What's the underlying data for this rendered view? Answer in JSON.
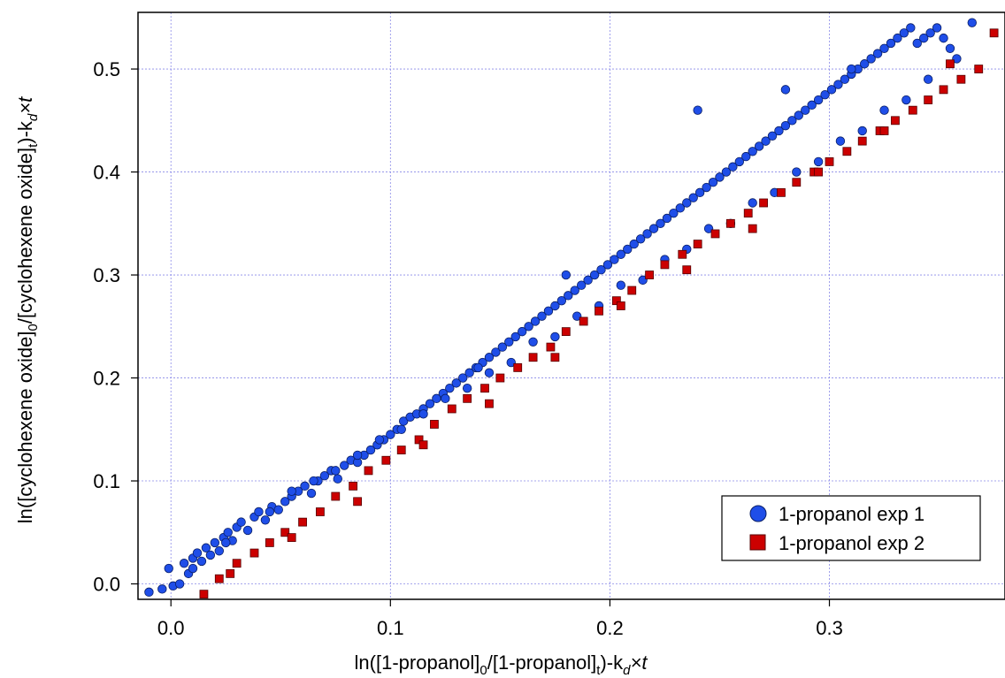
{
  "chart_data": {
    "type": "scatter",
    "xlabel": {
      "main": "ln([1-propanol]",
      "sub1": "0",
      "mid": "/[1-propanol]",
      "sub2": "t",
      "tail": ")-k",
      "sub3": "d",
      "end": "×t"
    },
    "ylabel": {
      "main": "ln([cyclohexene oxide]",
      "sub1": "0",
      "mid": "/[cyclohexene oxide]",
      "sub2": "t",
      "tail": ")-k",
      "sub3": "d",
      "end": "×t"
    },
    "xlim": [
      -0.015,
      0.38
    ],
    "ylim": [
      -0.015,
      0.555
    ],
    "x_ticks": [
      0.0,
      0.1,
      0.2,
      0.3
    ],
    "x_tick_labels": [
      "0.0",
      "0.1",
      "0.2",
      "0.3"
    ],
    "y_ticks": [
      0.0,
      0.1,
      0.2,
      0.3,
      0.4,
      0.5
    ],
    "y_tick_labels": [
      "0.0",
      "0.1",
      "0.2",
      "0.3",
      "0.4",
      "0.5"
    ],
    "grid": true,
    "legend_position": "bottom-right",
    "series": [
      {
        "name": "1-propanol exp 1",
        "marker": "circle",
        "color": "#1f4ee8",
        "x": [
          -0.01,
          -0.004,
          -0.001,
          0.001,
          0.004,
          0.006,
          0.008,
          0.01,
          0.012,
          0.014,
          0.016,
          0.018,
          0.02,
          0.022,
          0.024,
          0.026,
          0.028,
          0.03,
          0.032,
          0.035,
          0.038,
          0.04,
          0.043,
          0.046,
          0.049,
          0.052,
          0.055,
          0.058,
          0.061,
          0.064,
          0.067,
          0.07,
          0.073,
          0.076,
          0.079,
          0.082,
          0.085,
          0.088,
          0.091,
          0.094,
          0.097,
          0.1,
          0.103,
          0.106,
          0.109,
          0.112,
          0.115,
          0.118,
          0.121,
          0.124,
          0.127,
          0.13,
          0.133,
          0.136,
          0.139,
          0.142,
          0.145,
          0.148,
          0.151,
          0.154,
          0.157,
          0.16,
          0.163,
          0.166,
          0.169,
          0.172,
          0.175,
          0.178,
          0.181,
          0.184,
          0.187,
          0.19,
          0.193,
          0.196,
          0.199,
          0.202,
          0.205,
          0.208,
          0.211,
          0.214,
          0.217,
          0.22,
          0.223,
          0.226,
          0.229,
          0.232,
          0.235,
          0.238,
          0.241,
          0.244,
          0.247,
          0.25,
          0.253,
          0.256,
          0.259,
          0.262,
          0.265,
          0.268,
          0.271,
          0.274,
          0.277,
          0.28,
          0.283,
          0.286,
          0.289,
          0.292,
          0.295,
          0.298,
          0.301,
          0.304,
          0.307,
          0.31,
          0.313,
          0.316,
          0.319,
          0.322,
          0.325,
          0.328,
          0.331,
          0.334,
          0.337,
          0.34,
          0.343,
          0.346,
          0.349,
          0.352,
          0.355,
          0.358,
          0.365,
          0.01,
          0.025,
          0.045,
          0.065,
          0.085,
          0.105,
          0.125,
          0.145,
          0.165,
          0.185,
          0.205,
          0.225,
          0.245,
          0.265,
          0.285,
          0.305,
          0.325,
          0.345,
          0.055,
          0.075,
          0.095,
          0.115,
          0.135,
          0.155,
          0.175,
          0.195,
          0.215,
          0.235,
          0.255,
          0.275,
          0.295,
          0.315,
          0.335,
          0.24,
          0.28,
          0.31,
          0.18,
          0.14
        ],
        "y": [
          -0.008,
          -0.005,
          0.015,
          -0.002,
          0.0,
          0.02,
          0.01,
          0.025,
          0.03,
          0.022,
          0.035,
          0.028,
          0.04,
          0.032,
          0.045,
          0.05,
          0.042,
          0.055,
          0.06,
          0.052,
          0.065,
          0.07,
          0.062,
          0.075,
          0.072,
          0.08,
          0.085,
          0.09,
          0.095,
          0.088,
          0.1,
          0.105,
          0.11,
          0.102,
          0.115,
          0.12,
          0.118,
          0.125,
          0.13,
          0.135,
          0.14,
          0.145,
          0.15,
          0.158,
          0.162,
          0.165,
          0.17,
          0.175,
          0.18,
          0.185,
          0.19,
          0.195,
          0.2,
          0.205,
          0.21,
          0.215,
          0.22,
          0.225,
          0.23,
          0.235,
          0.24,
          0.245,
          0.25,
          0.255,
          0.26,
          0.265,
          0.27,
          0.275,
          0.28,
          0.285,
          0.29,
          0.295,
          0.3,
          0.305,
          0.31,
          0.315,
          0.32,
          0.325,
          0.33,
          0.335,
          0.34,
          0.345,
          0.35,
          0.355,
          0.36,
          0.365,
          0.37,
          0.375,
          0.38,
          0.385,
          0.39,
          0.395,
          0.4,
          0.405,
          0.41,
          0.415,
          0.42,
          0.425,
          0.43,
          0.435,
          0.44,
          0.445,
          0.45,
          0.455,
          0.46,
          0.465,
          0.47,
          0.475,
          0.48,
          0.485,
          0.49,
          0.495,
          0.5,
          0.505,
          0.51,
          0.515,
          0.52,
          0.525,
          0.53,
          0.535,
          0.54,
          0.525,
          0.53,
          0.535,
          0.54,
          0.53,
          0.52,
          0.51,
          0.545,
          0.015,
          0.04,
          0.07,
          0.1,
          0.125,
          0.15,
          0.18,
          0.205,
          0.235,
          0.26,
          0.29,
          0.315,
          0.345,
          0.37,
          0.4,
          0.43,
          0.46,
          0.49,
          0.09,
          0.11,
          0.14,
          0.165,
          0.19,
          0.215,
          0.24,
          0.27,
          0.295,
          0.325,
          0.35,
          0.38,
          0.41,
          0.44,
          0.47,
          0.46,
          0.48,
          0.5,
          0.3,
          0.21
        ]
      },
      {
        "name": "1-propanol exp 2",
        "marker": "square",
        "color": "#cc0000",
        "x": [
          0.015,
          0.022,
          0.03,
          0.038,
          0.045,
          0.052,
          0.06,
          0.068,
          0.075,
          0.083,
          0.09,
          0.098,
          0.105,
          0.113,
          0.12,
          0.128,
          0.135,
          0.143,
          0.15,
          0.158,
          0.165,
          0.173,
          0.18,
          0.188,
          0.195,
          0.203,
          0.21,
          0.218,
          0.225,
          0.233,
          0.24,
          0.248,
          0.255,
          0.263,
          0.27,
          0.278,
          0.285,
          0.293,
          0.3,
          0.308,
          0.315,
          0.323,
          0.33,
          0.338,
          0.345,
          0.352,
          0.36,
          0.368,
          0.375,
          0.027,
          0.055,
          0.085,
          0.115,
          0.145,
          0.175,
          0.205,
          0.235,
          0.265,
          0.295,
          0.325,
          0.355
        ],
        "y": [
          -0.01,
          0.005,
          0.02,
          0.03,
          0.04,
          0.05,
          0.06,
          0.07,
          0.085,
          0.095,
          0.11,
          0.12,
          0.13,
          0.14,
          0.155,
          0.17,
          0.18,
          0.19,
          0.2,
          0.21,
          0.22,
          0.23,
          0.245,
          0.255,
          0.265,
          0.275,
          0.285,
          0.3,
          0.31,
          0.32,
          0.33,
          0.34,
          0.35,
          0.36,
          0.37,
          0.38,
          0.39,
          0.4,
          0.41,
          0.42,
          0.43,
          0.44,
          0.45,
          0.46,
          0.47,
          0.48,
          0.49,
          0.5,
          0.535,
          0.01,
          0.045,
          0.08,
          0.135,
          0.175,
          0.22,
          0.27,
          0.305,
          0.345,
          0.4,
          0.44,
          0.505
        ]
      }
    ]
  }
}
